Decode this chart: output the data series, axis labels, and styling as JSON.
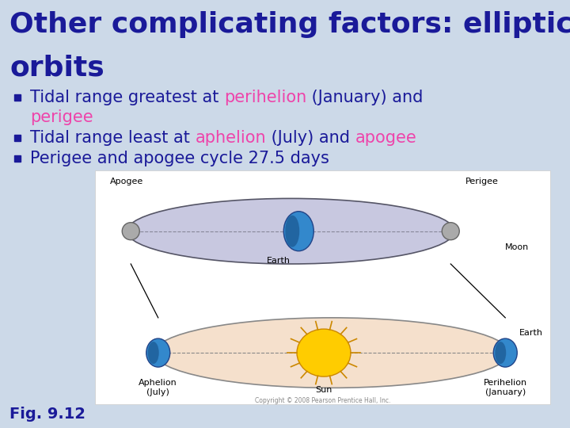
{
  "title_line1": "Other complicating factors: elliptical",
  "title_line2": "orbits",
  "title_color": "#1a1a99",
  "title_fontsize": 26,
  "bg_color": "#ccd9e8",
  "bullet_color": "#1a1a99",
  "bullet_fontsize": 15,
  "highlight_color": "#ee44aa",
  "fig_caption": "Fig. 9.12",
  "fig_caption_color": "#1a1a99",
  "fig_caption_fontsize": 14,
  "diag_bg": "white",
  "moon_ellipse_color": "#c8c8e0",
  "sun_ellipse_color": "#f5e0cc",
  "earth_color": "#3388cc",
  "moon_color": "#aaaaaa",
  "sun_color": "#ffcc00",
  "sun_ray_color": "#cc8800",
  "label_fontsize": 8
}
